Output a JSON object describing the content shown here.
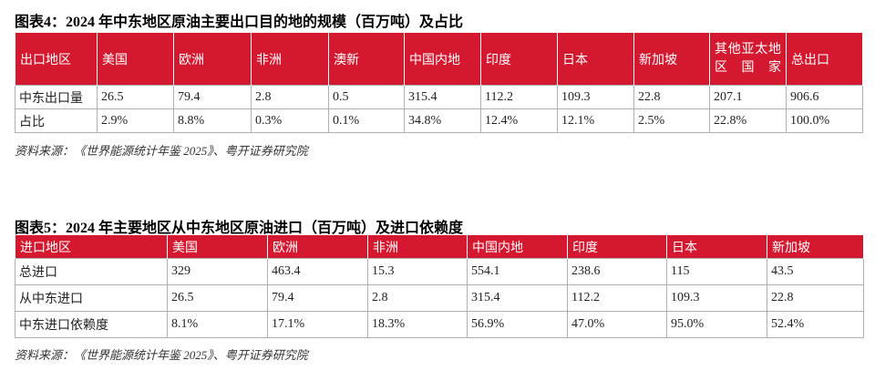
{
  "table1": {
    "title": "图表4：2024 年中东地区原油主要出口目的地的规模（百万吨）及占比",
    "header": [
      "出口地区",
      "美国",
      "欧洲",
      "非洲",
      "澳新",
      "中国内地",
      "印度",
      "日本",
      "新加坡",
      "其他亚太地区国家",
      "总出口"
    ],
    "rows": [
      [
        "中东出口量",
        "26.5",
        "79.4",
        "2.8",
        "0.5",
        "315.4",
        "112.2",
        "109.3",
        "22.8",
        "207.1",
        "906.6"
      ],
      [
        "占比",
        "2.9%",
        "8.8%",
        "0.3%",
        "0.1%",
        "34.8%",
        "12.4%",
        "12.1%",
        "2.5%",
        "22.8%",
        "100.0%"
      ]
    ],
    "source": "资料来源：《世界能源统计年鉴 2025》、粤开证券研究院"
  },
  "table2": {
    "title": "图表5：2024 年主要地区从中东地区原油进口（百万吨）及进口依赖度",
    "header": [
      "进口地区",
      "美国",
      "欧洲",
      "非洲",
      "中国内地",
      "印度",
      "日本",
      "新加坡"
    ],
    "rows": [
      [
        "总进口",
        "329",
        "463.4",
        "15.3",
        "554.1",
        "238.6",
        "115",
        "43.5"
      ],
      [
        "从中东进口",
        "26.5",
        "79.4",
        "2.8",
        "315.4",
        "112.2",
        "109.3",
        "22.8"
      ],
      [
        "中东进口依赖度",
        "8.1%",
        "17.1%",
        "18.3%",
        "56.9%",
        "47.0%",
        "95.0%",
        "52.4%"
      ]
    ],
    "source": "资料来源：《世界能源统计年鉴 2025》、粤开证券研究院"
  }
}
